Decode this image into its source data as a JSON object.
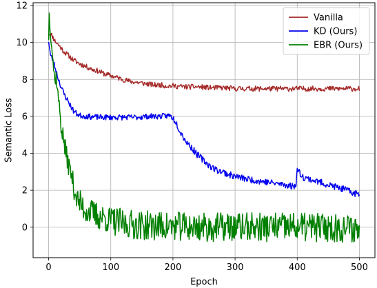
{
  "chart_data": {
    "type": "line",
    "xlabel": "Epoch",
    "ylabel": "Semantic Loss",
    "xlim": [
      -25,
      525
    ],
    "ylim": [
      -1.65,
      12.15
    ],
    "xticks": [
      0,
      100,
      200,
      300,
      400,
      500
    ],
    "yticks": [
      0,
      2,
      4,
      6,
      8,
      10,
      12
    ],
    "grid": true,
    "legend_position": "top-right",
    "series": [
      {
        "name": "Vanilla",
        "color": "#a52a2a",
        "points": [
          [
            0,
            10.5
          ],
          [
            5,
            10.4
          ],
          [
            10,
            10.1
          ],
          [
            15,
            9.9
          ],
          [
            20,
            9.7
          ],
          [
            25,
            9.5
          ],
          [
            30,
            9.35
          ],
          [
            35,
            9.2
          ],
          [
            40,
            9.05
          ],
          [
            45,
            8.95
          ],
          [
            50,
            8.85
          ],
          [
            60,
            8.7
          ],
          [
            70,
            8.55
          ],
          [
            80,
            8.45
          ],
          [
            90,
            8.3
          ],
          [
            100,
            8.2
          ],
          [
            110,
            8.1
          ],
          [
            120,
            8.0
          ],
          [
            130,
            7.9
          ],
          [
            140,
            7.85
          ],
          [
            150,
            7.8
          ],
          [
            160,
            7.75
          ],
          [
            170,
            7.7
          ],
          [
            180,
            7.7
          ],
          [
            190,
            7.65
          ],
          [
            200,
            7.65
          ],
          [
            220,
            7.6
          ],
          [
            240,
            7.6
          ],
          [
            260,
            7.55
          ],
          [
            280,
            7.55
          ],
          [
            300,
            7.5
          ],
          [
            320,
            7.5
          ],
          [
            340,
            7.5
          ],
          [
            360,
            7.5
          ],
          [
            380,
            7.5
          ],
          [
            400,
            7.5
          ],
          [
            420,
            7.5
          ],
          [
            440,
            7.5
          ],
          [
            460,
            7.5
          ],
          [
            480,
            7.5
          ],
          [
            500,
            7.5
          ]
        ]
      },
      {
        "name": "KD (Ours)",
        "color": "#0000ee",
        "points": [
          [
            0,
            10.1
          ],
          [
            3,
            9.3
          ],
          [
            6,
            9.1
          ],
          [
            10,
            8.7
          ],
          [
            15,
            8.1
          ],
          [
            20,
            7.6
          ],
          [
            25,
            7.2
          ],
          [
            30,
            6.9
          ],
          [
            35,
            6.6
          ],
          [
            40,
            6.3
          ],
          [
            45,
            6.15
          ],
          [
            50,
            6.05
          ],
          [
            60,
            6.0
          ],
          [
            80,
            5.95
          ],
          [
            100,
            5.95
          ],
          [
            120,
            5.95
          ],
          [
            140,
            5.95
          ],
          [
            160,
            6.0
          ],
          [
            180,
            6.0
          ],
          [
            195,
            6.05
          ],
          [
            200,
            5.9
          ],
          [
            205,
            5.7
          ],
          [
            210,
            5.3
          ],
          [
            215,
            5.0
          ],
          [
            220,
            4.7
          ],
          [
            230,
            4.3
          ],
          [
            240,
            3.9
          ],
          [
            250,
            3.6
          ],
          [
            260,
            3.3
          ],
          [
            270,
            3.1
          ],
          [
            280,
            3.0
          ],
          [
            290,
            2.85
          ],
          [
            300,
            2.75
          ],
          [
            320,
            2.6
          ],
          [
            340,
            2.5
          ],
          [
            360,
            2.4
          ],
          [
            380,
            2.3
          ],
          [
            395,
            2.2
          ],
          [
            398,
            2.4
          ],
          [
            400,
            3.1
          ],
          [
            405,
            2.9
          ],
          [
            410,
            2.7
          ],
          [
            420,
            2.6
          ],
          [
            440,
            2.4
          ],
          [
            460,
            2.2
          ],
          [
            480,
            2.0
          ],
          [
            490,
            1.85
          ],
          [
            500,
            1.8
          ]
        ]
      },
      {
        "name": "EBR (Ours)",
        "color": "#008000",
        "points": [
          [
            0,
            10.3
          ],
          [
            1,
            11.5
          ],
          [
            3,
            10.6
          ],
          [
            5,
            9.9
          ],
          [
            8,
            8.6
          ],
          [
            10,
            7.9
          ],
          [
            12,
            8.2
          ],
          [
            15,
            7.2
          ],
          [
            18,
            6.3
          ],
          [
            20,
            5.6
          ],
          [
            23,
            4.9
          ],
          [
            25,
            4.6
          ],
          [
            28,
            3.9
          ],
          [
            30,
            3.7
          ],
          [
            33,
            3.3
          ],
          [
            35,
            3.0
          ],
          [
            38,
            2.7
          ],
          [
            40,
            2.2
          ],
          [
            43,
            1.9
          ],
          [
            45,
            1.6
          ],
          [
            50,
            1.3
          ],
          [
            55,
            1.1
          ],
          [
            60,
            0.95
          ],
          [
            70,
            0.75
          ],
          [
            80,
            0.6
          ],
          [
            90,
            0.5
          ],
          [
            100,
            0.35
          ],
          [
            120,
            0.2
          ],
          [
            150,
            0.1
          ],
          [
            200,
            0.05
          ],
          [
            250,
            0.0
          ],
          [
            300,
            0.0
          ],
          [
            350,
            0.0
          ],
          [
            400,
            0.0
          ],
          [
            450,
            0.0
          ],
          [
            500,
            -0.1
          ]
        ]
      }
    ]
  }
}
